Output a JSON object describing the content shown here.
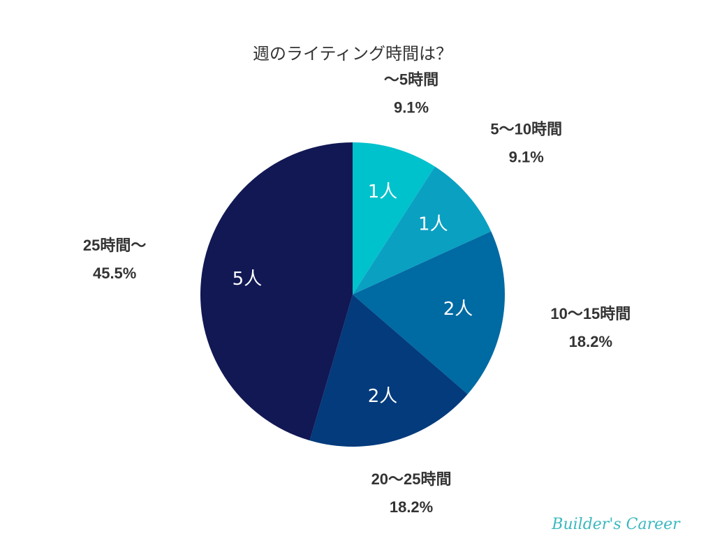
{
  "chart_data": {
    "type": "pie",
    "title": "週のライティング時間は？",
    "categories": [
      "〜5時間",
      "5〜10時間",
      "10〜15時間",
      "20〜25時間",
      "25時間〜"
    ],
    "values": [
      9.1,
      9.1,
      18.2,
      18.2,
      45.5
    ],
    "value_labels": [
      "9.1%",
      "9.1%",
      "18.2%",
      "18.2%",
      "45.5%"
    ],
    "count_labels": [
      "1人",
      "1人",
      "2人",
      "2人",
      "5人"
    ],
    "colors": [
      "#00c2cc",
      "#0aa0c2",
      "#006aa3",
      "#033b7c",
      "#111854"
    ],
    "watermark": "Builder's Career"
  }
}
